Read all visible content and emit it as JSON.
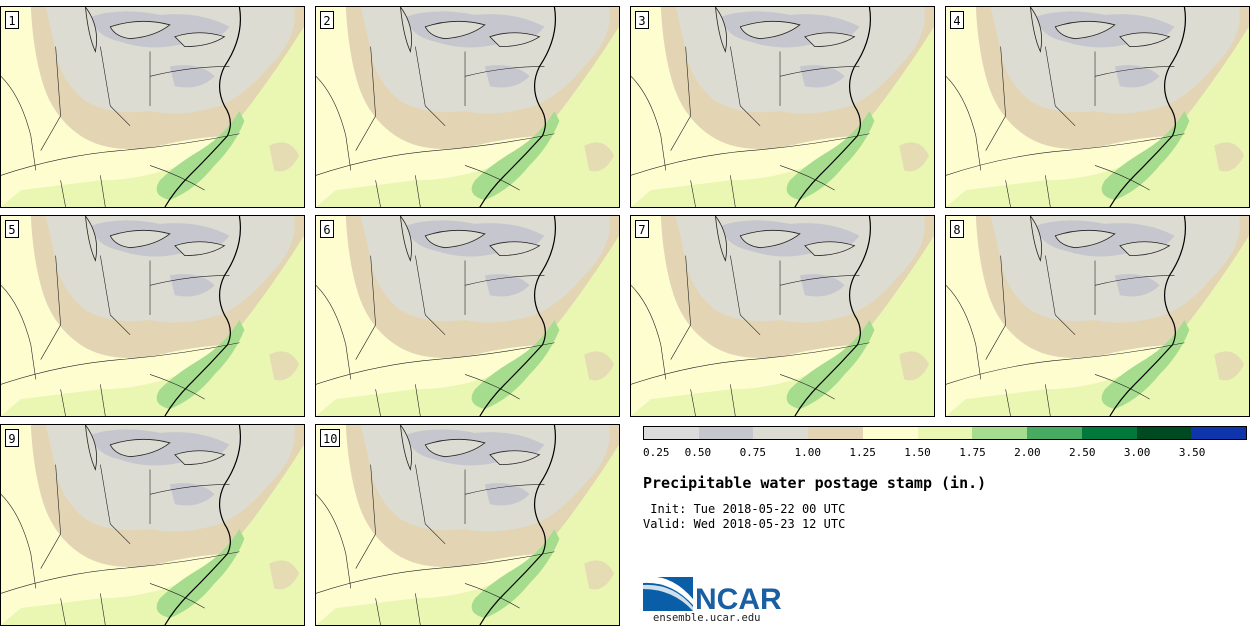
{
  "panels": [
    {
      "label": "1"
    },
    {
      "label": "2"
    },
    {
      "label": "3"
    },
    {
      "label": "4"
    },
    {
      "label": "5"
    },
    {
      "label": "6"
    },
    {
      "label": "7"
    },
    {
      "label": "8"
    },
    {
      "label": "9"
    },
    {
      "label": "10"
    }
  ],
  "legend": {
    "colors": [
      "#dcdcdc",
      "#c6c6ce",
      "#dcdcd2",
      "#e3d5b4",
      "#fdfdd0",
      "#e9f7b2",
      "#a6dc8e",
      "#47ac61",
      "#00793a",
      "#004a22",
      "#0f35ad"
    ],
    "ticks": [
      "0.25",
      "0.50",
      "0.75",
      "1.00",
      "1.25",
      "1.50",
      "1.75",
      "2.00",
      "2.50",
      "3.00",
      "3.50"
    ]
  },
  "title": "Precipitable water postage stamp (in.)",
  "init": " Init: Tue 2018-05-22 00 UTC",
  "valid": "Valid: Wed 2018-05-23 12 UTC",
  "logo": {
    "text": "NCAR",
    "url": "ensemble.ucar.edu",
    "colors": {
      "blue": "#0a5ea8",
      "text": "#1b5fa3"
    }
  }
}
